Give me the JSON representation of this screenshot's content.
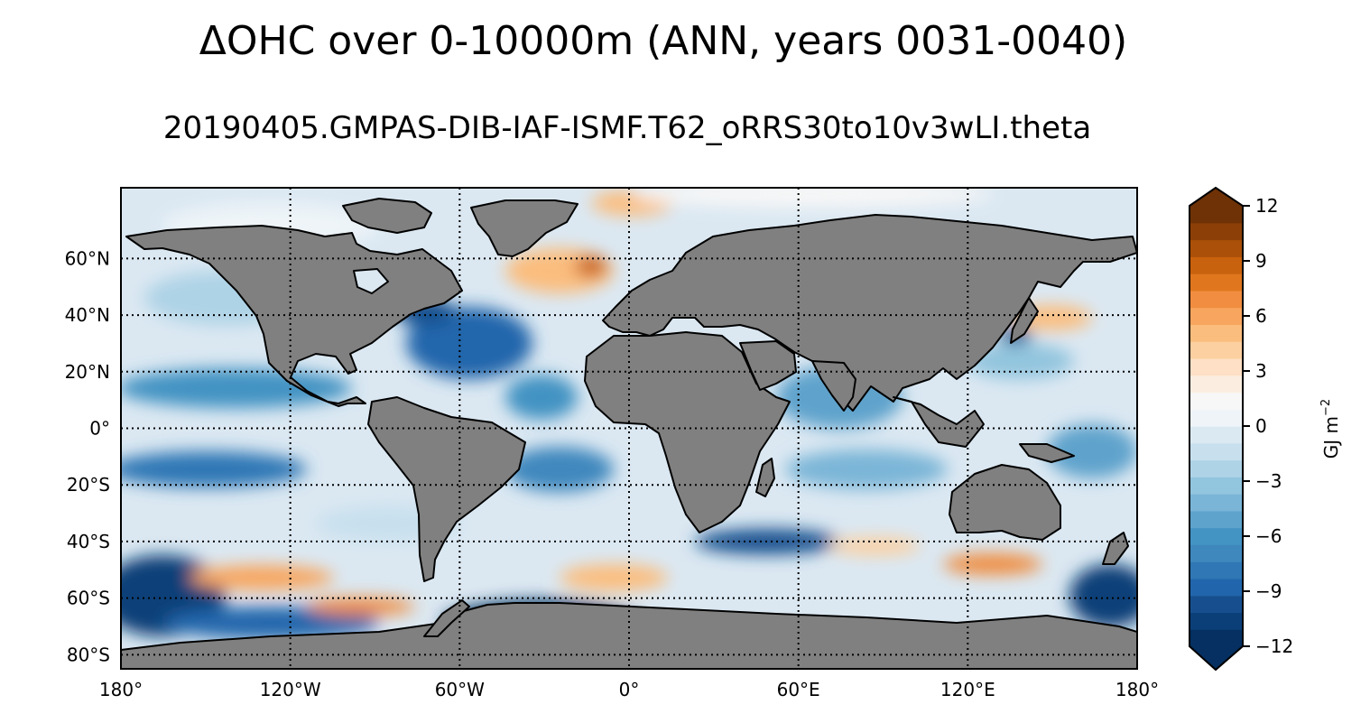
{
  "title": "ΔOHC over 0-10000m (ANN, years 0031-0040)",
  "subtitle": "20190405.GMPAS-DIB-IAF-ISMF.T62_oRRS30to10v3wLI.theta",
  "map": {
    "projection": "PlateCarree",
    "lon_range": [
      -180,
      180
    ],
    "lat_range": [
      -85,
      85
    ],
    "land_color": "#808080",
    "ocean_base_color": "#dbe8f2",
    "lon_ticks": [
      {
        "value": -180,
        "label": "180°"
      },
      {
        "value": -120,
        "label": "120°W"
      },
      {
        "value": -60,
        "label": "60°W"
      },
      {
        "value": 0,
        "label": "0°"
      },
      {
        "value": 60,
        "label": "60°E"
      },
      {
        "value": 120,
        "label": "120°E"
      },
      {
        "value": 180,
        "label": "180°"
      }
    ],
    "lat_ticks": [
      {
        "value": 60,
        "label": "60°N"
      },
      {
        "value": 40,
        "label": "40°N"
      },
      {
        "value": 20,
        "label": "20°N"
      },
      {
        "value": 0,
        "label": "0°"
      },
      {
        "value": -20,
        "label": "20°S"
      },
      {
        "value": -40,
        "label": "40°S"
      },
      {
        "value": -60,
        "label": "60°S"
      },
      {
        "value": -80,
        "label": "80°S"
      }
    ]
  },
  "colorbar": {
    "label": "GJ m",
    "label_exponent": "−2",
    "vmin": -12,
    "vmax": 12,
    "ticks": [
      {
        "value": 12,
        "label": "12"
      },
      {
        "value": 9,
        "label": "9"
      },
      {
        "value": 6,
        "label": "6"
      },
      {
        "value": 3,
        "label": "3"
      },
      {
        "value": 0,
        "label": "0"
      },
      {
        "value": -3,
        "label": "−3"
      },
      {
        "value": -6,
        "label": "−6"
      },
      {
        "value": -9,
        "label": "−9"
      },
      {
        "value": -12,
        "label": "−12"
      }
    ],
    "colors": [
      "#053061",
      "#0b3f78",
      "#174f8e",
      "#2166ac",
      "#2f77b5",
      "#3f88be",
      "#4393c3",
      "#5ea3cc",
      "#7ab5d7",
      "#92c5de",
      "#aed3e6",
      "#c8e0ee",
      "#dbe9f2",
      "#eef4f8",
      "#f7f7f7",
      "#fbeee0",
      "#fde0c5",
      "#fcd0a0",
      "#fbbd7e",
      "#f8a65f",
      "#f08d40",
      "#e0771f",
      "#c9620e",
      "#aa5009",
      "#8c4008",
      "#6e3206"
    ]
  }
}
